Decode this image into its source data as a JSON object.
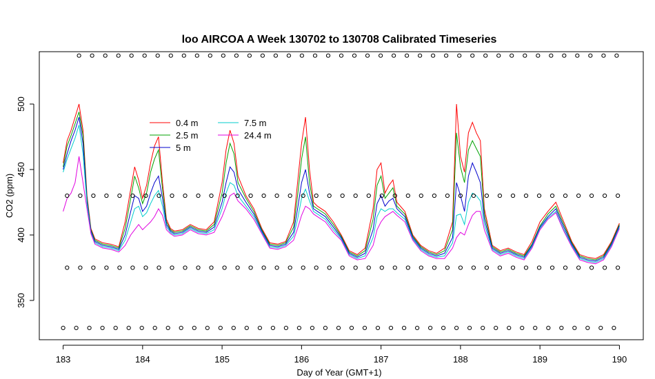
{
  "chart_data": {
    "type": "line",
    "title": "loo AIRCOA A  Week 130702 to 130708  Calibrated Timeseries",
    "xlabel": "Day of Year (GMT+1)",
    "ylabel": "CO2 (ppm)",
    "xlim": [
      182.7,
      190.3
    ],
    "ylim": [
      320,
      540
    ],
    "x_ticks": [
      183,
      184,
      185,
      186,
      187,
      188,
      189,
      190
    ],
    "y_ticks": [
      350,
      400,
      450,
      500
    ],
    "legend": {
      "placement": "top-left"
    },
    "series": [
      {
        "name": "0.4 m",
        "color": "#ff0000",
        "x": [
          183.0,
          183.05,
          183.1,
          183.15,
          183.2,
          183.25,
          183.3,
          183.35,
          183.4,
          183.5,
          183.6,
          183.7,
          183.78,
          183.85,
          183.9,
          183.95,
          184.0,
          184.05,
          184.1,
          184.15,
          184.2,
          184.25,
          184.3,
          184.35,
          184.4,
          184.5,
          184.6,
          184.7,
          184.8,
          184.9,
          185.0,
          185.05,
          185.1,
          185.15,
          185.2,
          185.3,
          185.4,
          185.5,
          185.6,
          185.7,
          185.8,
          185.9,
          185.95,
          186.0,
          186.05,
          186.1,
          186.15,
          186.2,
          186.3,
          186.4,
          186.5,
          186.6,
          186.7,
          186.8,
          186.9,
          186.95,
          187.0,
          187.05,
          187.1,
          187.15,
          187.2,
          187.3,
          187.4,
          187.5,
          187.6,
          187.7,
          187.8,
          187.9,
          187.95,
          188.0,
          188.05,
          188.1,
          188.15,
          188.2,
          188.25,
          188.3,
          188.4,
          188.5,
          188.6,
          188.7,
          188.8,
          188.9,
          189.0,
          189.1,
          189.2,
          189.3,
          189.4,
          189.5,
          189.6,
          189.7,
          189.8,
          189.9,
          190.0
        ],
        "y": [
          455,
          472,
          480,
          490,
          500,
          480,
          430,
          405,
          397,
          394,
          393,
          391,
          410,
          435,
          452,
          442,
          428,
          438,
          455,
          468,
          475,
          440,
          412,
          405,
          403,
          404,
          408,
          405,
          404,
          410,
          440,
          465,
          480,
          470,
          445,
          430,
          420,
          405,
          394,
          393,
          395,
          410,
          440,
          470,
          490,
          450,
          425,
          422,
          418,
          410,
          400,
          388,
          385,
          390,
          420,
          450,
          455,
          432,
          438,
          442,
          425,
          418,
          400,
          392,
          388,
          386,
          390,
          410,
          500,
          460,
          448,
          478,
          486,
          478,
          472,
          420,
          392,
          388,
          390,
          387,
          385,
          395,
          410,
          418,
          425,
          410,
          395,
          385,
          383,
          382,
          385,
          395,
          409
        ]
      },
      {
        "name": "2.5 m",
        "color": "#00a000",
        "x": [
          183.0,
          183.05,
          183.1,
          183.15,
          183.2,
          183.25,
          183.3,
          183.35,
          183.4,
          183.5,
          183.6,
          183.7,
          183.78,
          183.85,
          183.9,
          183.95,
          184.0,
          184.05,
          184.1,
          184.15,
          184.2,
          184.25,
          184.3,
          184.35,
          184.4,
          184.5,
          184.6,
          184.7,
          184.8,
          184.9,
          185.0,
          185.05,
          185.1,
          185.15,
          185.2,
          185.3,
          185.4,
          185.5,
          185.6,
          185.7,
          185.8,
          185.9,
          185.95,
          186.0,
          186.05,
          186.1,
          186.15,
          186.2,
          186.3,
          186.4,
          186.5,
          186.6,
          186.7,
          186.8,
          186.9,
          186.95,
          187.0,
          187.05,
          187.1,
          187.15,
          187.2,
          187.3,
          187.4,
          187.5,
          187.6,
          187.7,
          187.8,
          187.9,
          187.95,
          188.0,
          188.05,
          188.1,
          188.15,
          188.2,
          188.25,
          188.3,
          188.4,
          188.5,
          188.6,
          188.7,
          188.8,
          188.9,
          189.0,
          189.1,
          189.2,
          189.3,
          189.4,
          189.5,
          189.6,
          189.7,
          189.8,
          189.9,
          190.0
        ],
        "y": [
          452,
          468,
          476,
          485,
          494,
          476,
          428,
          404,
          396,
          393,
          392,
          390,
          405,
          428,
          445,
          436,
          424,
          432,
          448,
          458,
          465,
          435,
          410,
          404,
          402,
          403,
          407,
          404,
          403,
          408,
          432,
          455,
          470,
          462,
          440,
          428,
          418,
          404,
          393,
          392,
          394,
          406,
          430,
          458,
          475,
          440,
          422,
          420,
          416,
          408,
          399,
          387,
          384,
          388,
          412,
          438,
          445,
          428,
          432,
          436,
          422,
          416,
          399,
          391,
          387,
          385,
          388,
          404,
          478,
          452,
          440,
          465,
          472,
          466,
          460,
          416,
          391,
          387,
          389,
          386,
          384,
          393,
          407,
          416,
          422,
          408,
          394,
          384,
          382,
          381,
          384,
          394,
          408
        ]
      },
      {
        "name": "5 m",
        "color": "#0000cc",
        "x": [
          183.0,
          183.05,
          183.1,
          183.15,
          183.2,
          183.25,
          183.3,
          183.35,
          183.4,
          183.5,
          183.6,
          183.7,
          183.78,
          183.85,
          183.9,
          183.95,
          184.0,
          184.05,
          184.1,
          184.15,
          184.2,
          184.25,
          184.3,
          184.35,
          184.4,
          184.5,
          184.6,
          184.7,
          184.8,
          184.9,
          185.0,
          185.05,
          185.1,
          185.15,
          185.2,
          185.3,
          185.4,
          185.5,
          185.6,
          185.7,
          185.8,
          185.9,
          185.95,
          186.0,
          186.05,
          186.1,
          186.15,
          186.2,
          186.3,
          186.4,
          186.5,
          186.6,
          186.7,
          186.8,
          186.9,
          186.95,
          187.0,
          187.05,
          187.1,
          187.15,
          187.2,
          187.3,
          187.4,
          187.5,
          187.6,
          187.7,
          187.8,
          187.9,
          187.95,
          188.0,
          188.05,
          188.1,
          188.15,
          188.2,
          188.25,
          188.3,
          188.4,
          188.5,
          188.6,
          188.7,
          188.8,
          188.9,
          189.0,
          189.1,
          189.2,
          189.3,
          189.4,
          189.5,
          189.6,
          189.7,
          189.8,
          189.9,
          190.0
        ],
        "y": [
          450,
          462,
          472,
          480,
          490,
          470,
          426,
          403,
          395,
          392,
          391,
          389,
          400,
          418,
          430,
          428,
          418,
          422,
          432,
          440,
          445,
          428,
          408,
          403,
          401,
          402,
          406,
          403,
          402,
          406,
          425,
          440,
          452,
          448,
          435,
          425,
          416,
          403,
          392,
          391,
          393,
          402,
          420,
          440,
          450,
          432,
          420,
          418,
          414,
          406,
          398,
          386,
          383,
          386,
          404,
          424,
          430,
          422,
          426,
          428,
          420,
          414,
          398,
          390,
          386,
          384,
          386,
          398,
          440,
          430,
          418,
          445,
          455,
          448,
          440,
          412,
          390,
          386,
          388,
          385,
          383,
          392,
          406,
          414,
          420,
          406,
          393,
          383,
          381,
          380,
          383,
          393,
          407
        ]
      },
      {
        "name": "7.5 m",
        "color": "#00cccc",
        "x": [
          183.0,
          183.05,
          183.1,
          183.15,
          183.2,
          183.25,
          183.3,
          183.35,
          183.4,
          183.5,
          183.6,
          183.7,
          183.78,
          183.85,
          183.9,
          183.95,
          184.0,
          184.05,
          184.1,
          184.15,
          184.2,
          184.25,
          184.3,
          184.35,
          184.4,
          184.5,
          184.6,
          184.7,
          184.8,
          184.9,
          185.0,
          185.05,
          185.1,
          185.15,
          185.2,
          185.3,
          185.4,
          185.5,
          185.6,
          185.7,
          185.8,
          185.9,
          185.95,
          186.0,
          186.05,
          186.1,
          186.15,
          186.2,
          186.3,
          186.4,
          186.5,
          186.6,
          186.7,
          186.8,
          186.9,
          186.95,
          187.0,
          187.05,
          187.1,
          187.15,
          187.2,
          187.3,
          187.4,
          187.5,
          187.6,
          187.7,
          187.8,
          187.9,
          187.95,
          188.0,
          188.05,
          188.1,
          188.15,
          188.2,
          188.25,
          188.3,
          188.4,
          188.5,
          188.6,
          188.7,
          188.8,
          188.9,
          189.0,
          189.1,
          189.2,
          189.3,
          189.4,
          189.5,
          189.6,
          189.7,
          189.8,
          189.9,
          190.0
        ],
        "y": [
          448,
          458,
          466,
          474,
          484,
          462,
          424,
          402,
          394,
          391,
          390,
          388,
          396,
          410,
          420,
          422,
          414,
          417,
          424,
          430,
          434,
          422,
          406,
          402,
          400,
          401,
          405,
          402,
          401,
          404,
          420,
          432,
          440,
          438,
          430,
          422,
          414,
          402,
          391,
          390,
          392,
          399,
          412,
          428,
          435,
          426,
          418,
          416,
          412,
          404,
          397,
          385,
          382,
          384,
          398,
          414,
          420,
          418,
          420,
          420,
          417,
          412,
          397,
          389,
          385,
          383,
          384,
          394,
          415,
          416,
          408,
          425,
          432,
          430,
          426,
          408,
          389,
          385,
          387,
          384,
          382,
          391,
          405,
          413,
          418,
          404,
          392,
          382,
          380,
          379,
          382,
          392,
          406
        ]
      },
      {
        "name": "24.4 m",
        "color": "#e000e0",
        "x": [
          183.0,
          183.05,
          183.1,
          183.15,
          183.2,
          183.25,
          183.3,
          183.35,
          183.4,
          183.5,
          183.6,
          183.7,
          183.78,
          183.85,
          183.9,
          183.95,
          184.0,
          184.05,
          184.1,
          184.15,
          184.2,
          184.25,
          184.3,
          184.35,
          184.4,
          184.5,
          184.6,
          184.7,
          184.8,
          184.9,
          185.0,
          185.05,
          185.1,
          185.15,
          185.2,
          185.3,
          185.4,
          185.5,
          185.6,
          185.7,
          185.8,
          185.9,
          185.95,
          186.0,
          186.05,
          186.1,
          186.15,
          186.2,
          186.3,
          186.4,
          186.5,
          186.6,
          186.7,
          186.8,
          186.9,
          186.95,
          187.0,
          187.05,
          187.1,
          187.15,
          187.2,
          187.3,
          187.4,
          187.5,
          187.6,
          187.7,
          187.8,
          187.9,
          187.95,
          188.0,
          188.05,
          188.1,
          188.15,
          188.2,
          188.25,
          188.3,
          188.4,
          188.5,
          188.6,
          188.7,
          188.8,
          188.9,
          189.0,
          189.1,
          189.2,
          189.3,
          189.4,
          189.5,
          189.6,
          189.7,
          189.8,
          189.9,
          190.0
        ],
        "y": [
          418,
          428,
          432,
          440,
          460,
          440,
          420,
          401,
          393,
          390,
          389,
          387,
          392,
          400,
          404,
          408,
          404,
          407,
          410,
          414,
          420,
          415,
          404,
          401,
          399,
          400,
          404,
          401,
          400,
          402,
          414,
          422,
          430,
          432,
          426,
          420,
          412,
          401,
          390,
          389,
          391,
          396,
          405,
          415,
          422,
          420,
          416,
          414,
          410,
          402,
          396,
          384,
          381,
          382,
          392,
          404,
          410,
          414,
          416,
          418,
          415,
          410,
          396,
          388,
          384,
          382,
          382,
          390,
          398,
          402,
          400,
          408,
          415,
          418,
          418,
          404,
          388,
          384,
          386,
          383,
          381,
          390,
          404,
          412,
          417,
          403,
          391,
          381,
          379,
          378,
          381,
          391,
          405
        ]
      }
    ],
    "marker_rows": [
      {
        "y": 537,
        "x_start": 183.2,
        "x_end": 190.0,
        "step": 0.165
      },
      {
        "y": 430,
        "x_start": 183.05,
        "x_end": 190.0,
        "step": 0.165
      },
      {
        "y": 375,
        "x_start": 183.05,
        "x_end": 190.0,
        "step": 0.165
      },
      {
        "y": 329,
        "x_start": 183.0,
        "x_end": 190.0,
        "step": 0.165
      }
    ]
  }
}
